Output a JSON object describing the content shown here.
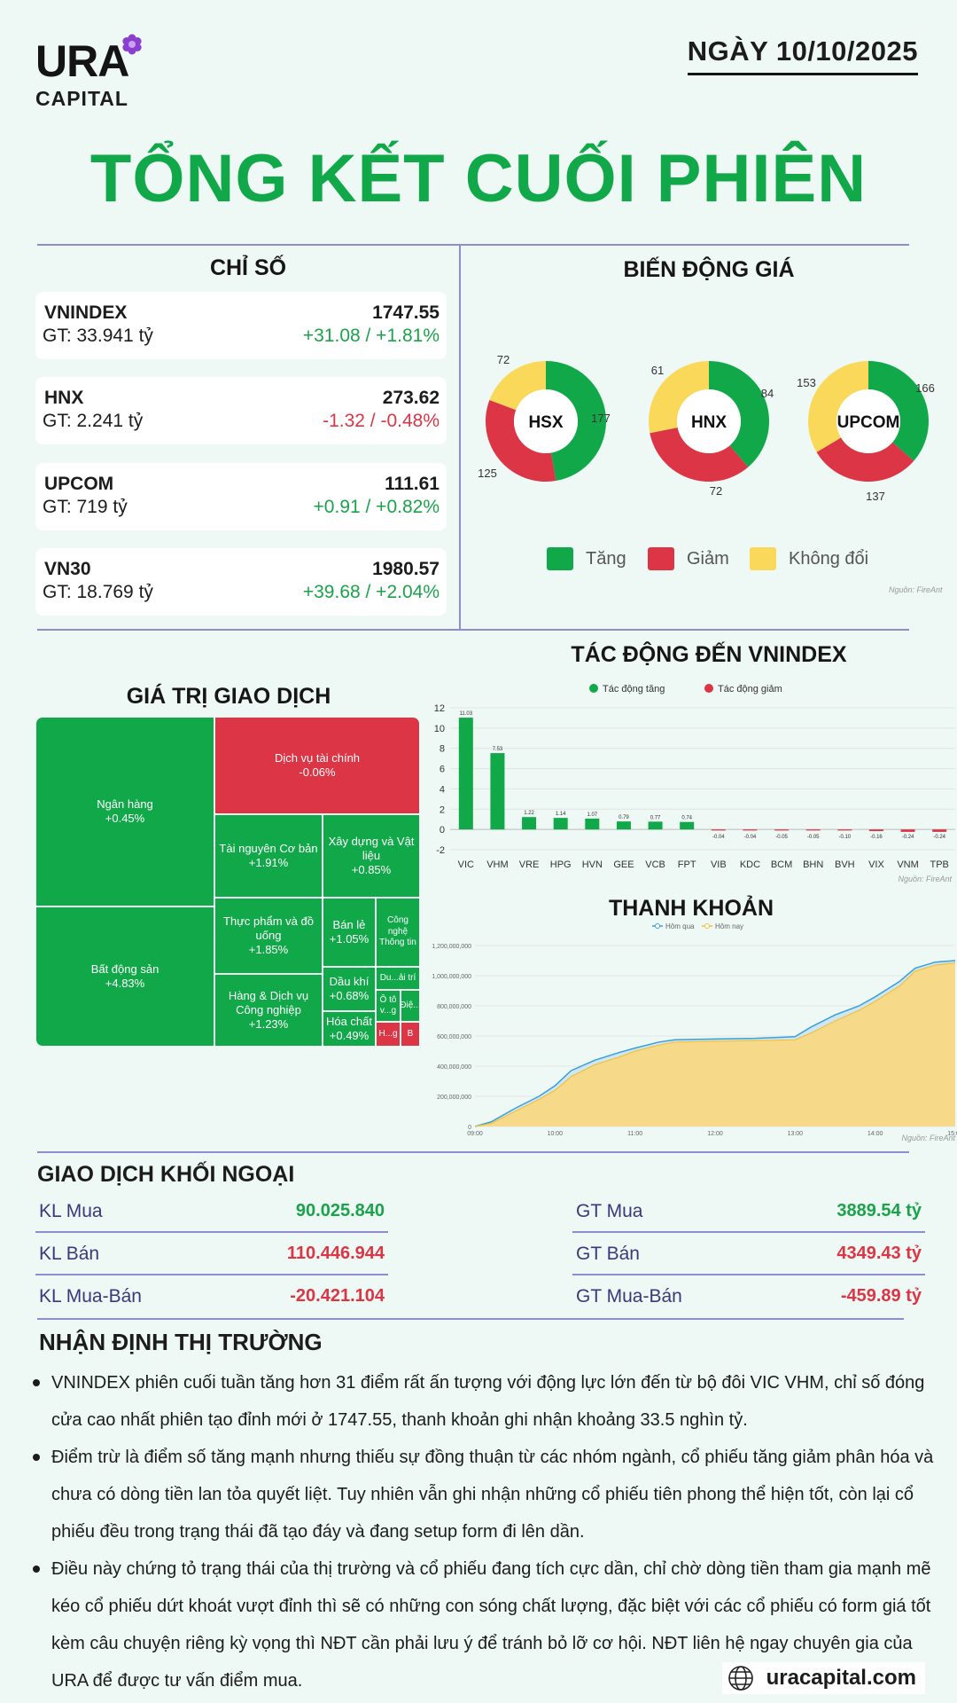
{
  "brand": {
    "name": "URA",
    "sub": "CAPITAL",
    "website": "uracapital.com"
  },
  "date": "NGÀY 10/10/2025",
  "title": "TỔNG KẾT CUỐI PHIÊN",
  "indices": {
    "title": "CHỈ SỐ",
    "items": [
      {
        "name": "VNINDEX",
        "gt": "GT: 33.941 tỷ",
        "point": "1747.55",
        "change": "+31.08 / +1.81%",
        "up": true
      },
      {
        "name": "HNX",
        "gt": "GT: 2.241 tỷ",
        "point": "273.62",
        "change": "-1.32 / -0.48%",
        "up": false
      },
      {
        "name": "UPCOM",
        "gt": "GT: 719 tỷ",
        "point": "111.61",
        "change": "+0.91 / +0.82%",
        "up": true
      },
      {
        "name": "VN30",
        "gt": "GT: 18.769 tỷ",
        "point": "1980.57",
        "change": "+39.68 / +2.04%",
        "up": true
      }
    ]
  },
  "colors": {
    "up": "#11a84a",
    "down": "#dc3545",
    "flat": "#fad95a",
    "accent": "#11a84a",
    "line": "#8d8fcc"
  },
  "breadth": {
    "title": "BIẾN ĐỘNG GIÁ",
    "legend": [
      "Tăng",
      "Giảm",
      "Không đổi"
    ],
    "source": "Nguồn: FireAnt"
  },
  "trading_value": {
    "title": "GIÁ TRỊ GIAO DỊCH"
  },
  "impact": {
    "title": "TÁC ĐỘNG ĐẾN VNINDEX",
    "legend": [
      "Tác động tăng",
      "Tác động giảm"
    ],
    "source": "Nguồn: FireAnt"
  },
  "liquidity": {
    "title": "THANH KHOẢN",
    "legend": [
      "Hôm qua",
      "Hôm nay"
    ],
    "source": "Nguồn: FireAnt"
  },
  "chart_data": [
    {
      "type": "pie",
      "name": "HSX",
      "categories": [
        "Tăng",
        "Giảm",
        "Không đổi"
      ],
      "values": [
        177,
        125,
        72
      ]
    },
    {
      "type": "pie",
      "name": "HNX",
      "categories": [
        "Tăng",
        "Giảm",
        "Không đổi"
      ],
      "values": [
        84,
        72,
        61
      ]
    },
    {
      "type": "pie",
      "name": "UPCOM",
      "categories": [
        "Tăng",
        "Giảm",
        "Không đổi"
      ],
      "values": [
        166,
        137,
        153
      ]
    },
    {
      "type": "bar",
      "title": "TÁC ĐỘNG ĐẾN VNINDEX",
      "categories": [
        "VIC",
        "VHM",
        "VRE",
        "HPG",
        "HVN",
        "GEE",
        "VCB",
        "FPT",
        "VIB",
        "KDC",
        "BCM",
        "BHN",
        "BVH",
        "VIX",
        "VNM",
        "TPB"
      ],
      "values": [
        11.03,
        7.53,
        1.22,
        1.14,
        1.07,
        0.79,
        0.77,
        0.74,
        -0.04,
        -0.04,
        -0.05,
        -0.05,
        -0.1,
        -0.16,
        -0.24,
        -0.24
      ],
      "value_labels": [
        "11.03",
        "7.53",
        "1.22",
        "1.14",
        "1.07",
        "0.79",
        "0.77",
        "0.74",
        "-0.04",
        "-0.04",
        "-0.05",
        "-0.05",
        "-0.10",
        "-0.16",
        "-0.24",
        "-0.24"
      ],
      "yticks": [
        "12",
        "10",
        "8",
        "6",
        "4",
        "2",
        "0",
        "-2"
      ],
      "ylim": [
        -2,
        12
      ],
      "grid": true,
      "legend_position": "top-center"
    },
    {
      "type": "area",
      "title": "THANH KHOẢN",
      "ylim": [
        0,
        1200000000
      ],
      "yticks": [
        "1,200,000,000",
        "1,000,000,000",
        "800,000,000",
        "600,000,000",
        "400,000,000",
        "200,000,000",
        "0"
      ],
      "xticks": [
        "09:00",
        "10:00",
        "11:00",
        "12:00",
        "13:00",
        "14:00",
        "15:00"
      ],
      "series": [
        {
          "name": "Hôm qua",
          "x": [
            9.0,
            9.2,
            9.5,
            9.8,
            10.0,
            10.2,
            10.5,
            10.8,
            11.0,
            11.3,
            11.5,
            12.0,
            12.5,
            13.0,
            13.2,
            13.5,
            13.8,
            14.0,
            14.3,
            14.5,
            14.75,
            15.0
          ],
          "y": [
            0,
            30000000,
            120000000,
            200000000,
            270000000,
            370000000,
            440000000,
            490000000,
            520000000,
            560000000,
            575000000,
            580000000,
            585000000,
            595000000,
            660000000,
            740000000,
            800000000,
            860000000,
            960000000,
            1050000000,
            1090000000,
            1100000000
          ]
        },
        {
          "name": "Hôm nay",
          "x": [
            9.0,
            9.2,
            9.5,
            9.8,
            10.0,
            10.2,
            10.5,
            10.8,
            11.0,
            11.3,
            11.5,
            12.0,
            12.5,
            13.0,
            13.2,
            13.5,
            13.8,
            14.0,
            14.3,
            14.5,
            14.75,
            15.0
          ],
          "y": [
            0,
            20000000,
            100000000,
            180000000,
            240000000,
            330000000,
            410000000,
            460000000,
            500000000,
            540000000,
            560000000,
            565000000,
            570000000,
            575000000,
            620000000,
            700000000,
            770000000,
            830000000,
            930000000,
            1030000000,
            1070000000,
            1085000000
          ]
        }
      ]
    },
    {
      "type": "heatmap",
      "title": "GIÁ TRỊ GIAO DỊCH",
      "cells": [
        {
          "name": "Ngân hàng",
          "change": "+0.45%",
          "up": true
        },
        {
          "name": "Bất động sản",
          "change": "+4.83%",
          "up": true
        },
        {
          "name": "Dịch vụ tài chính",
          "change": "-0.06%",
          "up": false
        },
        {
          "name": "Tài nguyên Cơ bản",
          "change": "+1.91%",
          "up": true
        },
        {
          "name": "Xây dựng và Vật liệu",
          "change": "+0.85%",
          "up": true
        },
        {
          "name": "Thực phẩm và đồ uống",
          "change": "+1.85%",
          "up": true
        },
        {
          "name": "Bán lẻ",
          "change": "+1.05%",
          "up": true
        },
        {
          "name": "Công nghệ Thông tin",
          "change": "",
          "up": true
        },
        {
          "name": "Hàng & Dịch vụ Công nghiệp",
          "change": "+1.23%",
          "up": true
        },
        {
          "name": "Dầu khí",
          "change": "+0.68%",
          "up": true
        },
        {
          "name": "Du...ải trí",
          "change": "",
          "up": true
        },
        {
          "name": "Ô tô v...g",
          "change": "",
          "up": true
        },
        {
          "name": "Điệ...",
          "change": "",
          "up": true
        },
        {
          "name": "Hóa chất",
          "change": "+0.49%",
          "up": true
        },
        {
          "name": "H...g",
          "change": "",
          "up": false
        },
        {
          "name": "B",
          "change": "",
          "up": false
        }
      ]
    }
  ],
  "foreign": {
    "title": "GIAO DỊCH KHỐI NGOẠI",
    "left": [
      {
        "label": "KL Mua",
        "value": "90.025.840",
        "up": true
      },
      {
        "label": "KL Bán",
        "value": "110.446.944",
        "up": false
      },
      {
        "label": "KL Mua-Bán",
        "value": "-20.421.104",
        "up": false
      }
    ],
    "right": [
      {
        "label": "GT Mua",
        "value": "3889.54 tỷ",
        "up": true
      },
      {
        "label": "GT Bán",
        "value": "4349.43 tỷ",
        "up": false
      },
      {
        "label": "GT Mua-Bán",
        "value": "-459.89 tỷ",
        "up": false
      }
    ]
  },
  "analysis": {
    "title": "NHẬN ĐỊNH THỊ TRƯỜNG",
    "bullets": [
      "VNINDEX phiên cuối tuần tăng hơn 31 điểm rất ấn tượng với động lực lớn đến từ bộ đôi VIC VHM, chỉ số đóng cửa cao nhất phiên tạo đỉnh mới ở 1747.55, thanh khoản ghi nhận khoảng 33.5 nghìn tỷ.",
      "Điểm trừ là điểm số tăng mạnh nhưng thiếu sự đồng thuận từ các nhóm ngành, cổ phiếu tăng giảm phân hóa và chưa có dòng tiền lan tỏa quyết liệt. Tuy nhiên vẫn ghi nhận những cổ phiếu tiên phong thể hiện tốt, còn lại cổ phiếu đều trong trạng thái đã tạo đáy và đang setup form đi lên dần.",
      "Điều này chứng tỏ trạng thái của thị trường và cổ phiếu đang tích cực dần, chỉ chờ dòng tiền tham gia mạnh mẽ kéo cổ phiếu dứt khoát vượt đỉnh thì sẽ có những con sóng chất lượng, đặc biệt với các cổ phiếu có form giá tốt kèm câu chuyện riêng kỳ vọng thì NĐT cần phải lưu ý để tránh bỏ lỡ cơ hội. NĐT liên hệ ngay chuyên gia của URA để được tư vấn điểm mua."
    ]
  }
}
